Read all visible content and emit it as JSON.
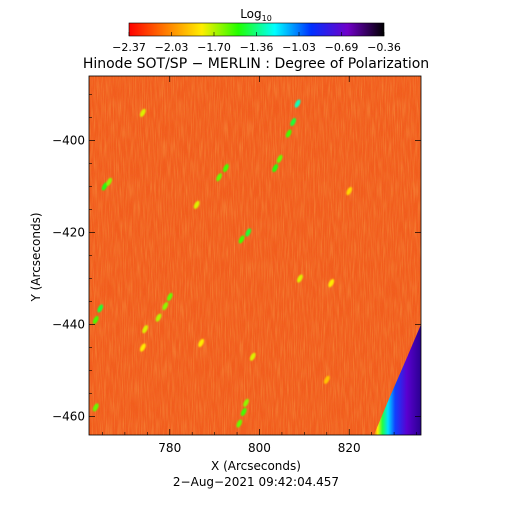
{
  "chart_data": {
    "type": "heatmap",
    "title": "Hinode SOT/SP − MERLIN : Degree of Polarization",
    "xlabel": "X (Arcseconds)",
    "ylabel": "Y (Arcseconds)",
    "timestamp": "2−Aug−2021 09:42:04.457",
    "xlim": [
      762,
      836
    ],
    "ylim": [
      -464,
      -386
    ],
    "x_ticks": [
      {
        "value": 780,
        "label": "780"
      },
      {
        "value": 800,
        "label": "800"
      },
      {
        "value": 820,
        "label": "820"
      }
    ],
    "y_ticks": [
      {
        "value": -400,
        "label": "−400"
      },
      {
        "value": -420,
        "label": "−420"
      },
      {
        "value": -440,
        "label": "−440"
      },
      {
        "value": -460,
        "label": "−460"
      }
    ],
    "colorbar": {
      "label_main": "Log",
      "label_sub": "10",
      "range": [
        -2.37,
        -0.36
      ],
      "tick_labels": [
        "−2.37",
        "−2.03",
        "−1.70",
        "−1.36",
        "−1.03",
        "−0.69",
        "−0.36"
      ],
      "colors": [
        "#ff0000",
        "#ff7a00",
        "#ffee00",
        "#22ff00",
        "#00ffff",
        "#0030ff",
        "#7000c8",
        "#000000"
      ]
    },
    "background_color": "#f15e1c",
    "features": [
      {
        "kind": "limb-edge",
        "note": "solar limb at lower right; polarization rises to high values beyond limb"
      }
    ],
    "bright_patches": [
      {
        "x": 808.5,
        "y": -392.0,
        "value": -1.3
      },
      {
        "x": 807.5,
        "y": -396.0,
        "value": -1.45
      },
      {
        "x": 806.5,
        "y": -398.5,
        "value": -1.55
      },
      {
        "x": 803.5,
        "y": -406.0,
        "value": -1.5
      },
      {
        "x": 804.5,
        "y": -404.0,
        "value": -1.6
      },
      {
        "x": 792.5,
        "y": -406.0,
        "value": -1.55
      },
      {
        "x": 791.0,
        "y": -408.0,
        "value": -1.6
      },
      {
        "x": 774.0,
        "y": -394.0,
        "value": -1.75
      },
      {
        "x": 765.5,
        "y": -410.0,
        "value": -1.5
      },
      {
        "x": 766.5,
        "y": -409.0,
        "value": -1.65
      },
      {
        "x": 797.5,
        "y": -420.0,
        "value": -1.45
      },
      {
        "x": 796.0,
        "y": -421.5,
        "value": -1.55
      },
      {
        "x": 786.0,
        "y": -414.0,
        "value": -1.75
      },
      {
        "x": 809.0,
        "y": -430.0,
        "value": -1.75
      },
      {
        "x": 816.0,
        "y": -431.0,
        "value": -1.8
      },
      {
        "x": 780.0,
        "y": -434.0,
        "value": -1.6
      },
      {
        "x": 779.0,
        "y": -436.0,
        "value": -1.65
      },
      {
        "x": 777.5,
        "y": -438.5,
        "value": -1.7
      },
      {
        "x": 774.5,
        "y": -441.0,
        "value": -1.75
      },
      {
        "x": 764.5,
        "y": -436.5,
        "value": -1.45
      },
      {
        "x": 763.5,
        "y": -439.0,
        "value": -1.55
      },
      {
        "x": 774.0,
        "y": -445.0,
        "value": -1.8
      },
      {
        "x": 787.0,
        "y": -444.0,
        "value": -1.8
      },
      {
        "x": 798.5,
        "y": -447.0,
        "value": -1.75
      },
      {
        "x": 797.0,
        "y": -457.0,
        "value": -1.65
      },
      {
        "x": 796.5,
        "y": -459.0,
        "value": -1.55
      },
      {
        "x": 795.5,
        "y": -461.5,
        "value": -1.6
      },
      {
        "x": 763.5,
        "y": -458.0,
        "value": -1.6
      },
      {
        "x": 815.0,
        "y": -452.0,
        "value": -1.9
      },
      {
        "x": 820.0,
        "y": -411.0,
        "value": -1.85
      }
    ]
  }
}
